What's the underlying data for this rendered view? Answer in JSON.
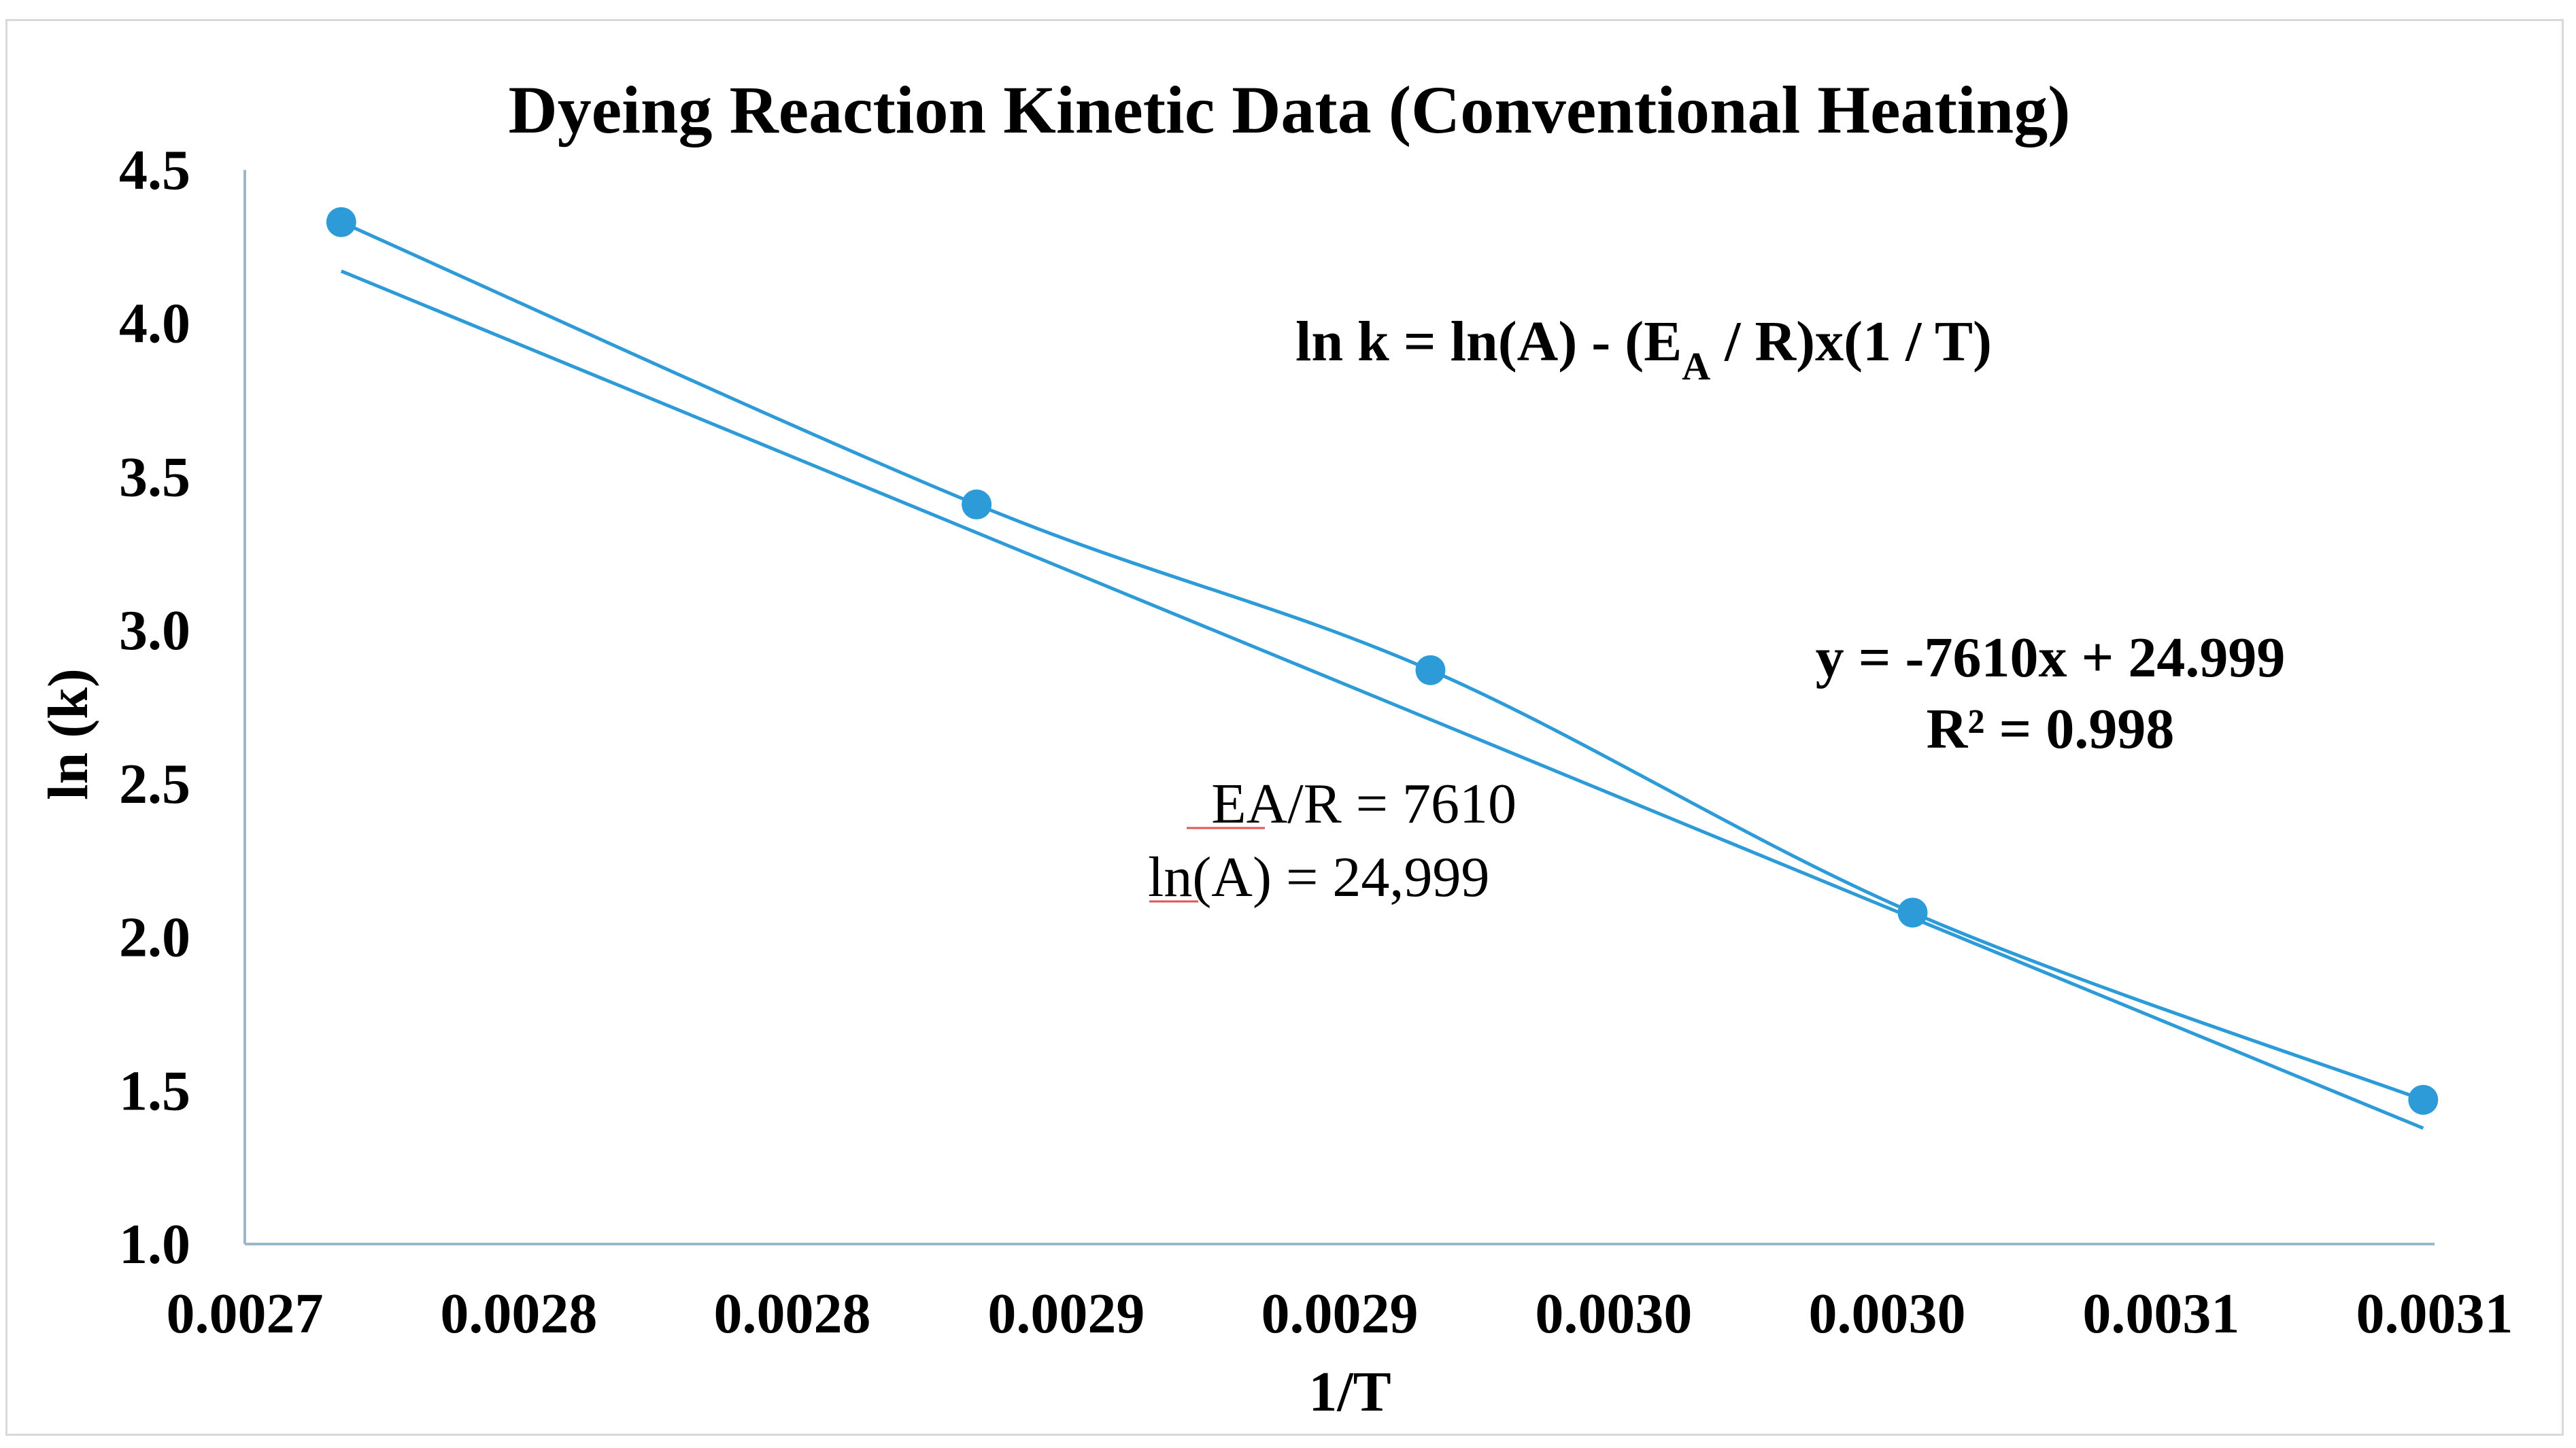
{
  "chart_data": {
    "type": "scatter",
    "title": "Dyeing Reaction Kinetic Data (Conventional Heating)",
    "xlabel": "1/T",
    "ylabel": "ln (k)",
    "xlim": [
      0.00272,
      0.003106
    ],
    "ylim": [
      1.0,
      4.5
    ],
    "x_tick_values": [
      0.00272,
      0.0027683,
      0.0028165,
      0.0028648,
      0.002913,
      0.0029613,
      0.0030095,
      0.0030578,
      0.003106
    ],
    "x_tick_labels": [
      "0.0027",
      "0.0028",
      "0.0028",
      "0.0029",
      "0.0029",
      "0.0030",
      "0.0030",
      "0.0031",
      "0.0031"
    ],
    "y_tick_values": [
      1.0,
      1.5,
      2.0,
      2.5,
      3.0,
      3.5,
      4.0,
      4.5
    ],
    "y_tick_labels": [
      "1.0",
      "1.5",
      "2.0",
      "2.5",
      "3.0",
      "3.5",
      "4.0",
      "4.5"
    ],
    "grid": false,
    "series": [
      {
        "name": "ln (k)",
        "color": "#2e9bd9",
        "x": [
          0.002737,
          0.002849,
          0.002929,
          0.003014,
          0.003104
        ],
        "y": [
          4.33,
          3.41,
          2.87,
          2.08,
          1.47
        ]
      }
    ],
    "trendline": {
      "color": "#2e9bd9",
      "slope": -7610,
      "intercept": 24.999,
      "x_range": [
        0.002737,
        0.003104
      ],
      "equation_label": "y = -7610x + 24.999",
      "r2_label": "R² = 0.998"
    },
    "annotations": {
      "formula_main": "ln k = ln(A) - (E",
      "formula_sub": "A",
      "formula_tail": " / R)x(1 / T)",
      "ea_r": "EA/R = 7610",
      "ln_a": "ln(A) = 24,999"
    }
  }
}
